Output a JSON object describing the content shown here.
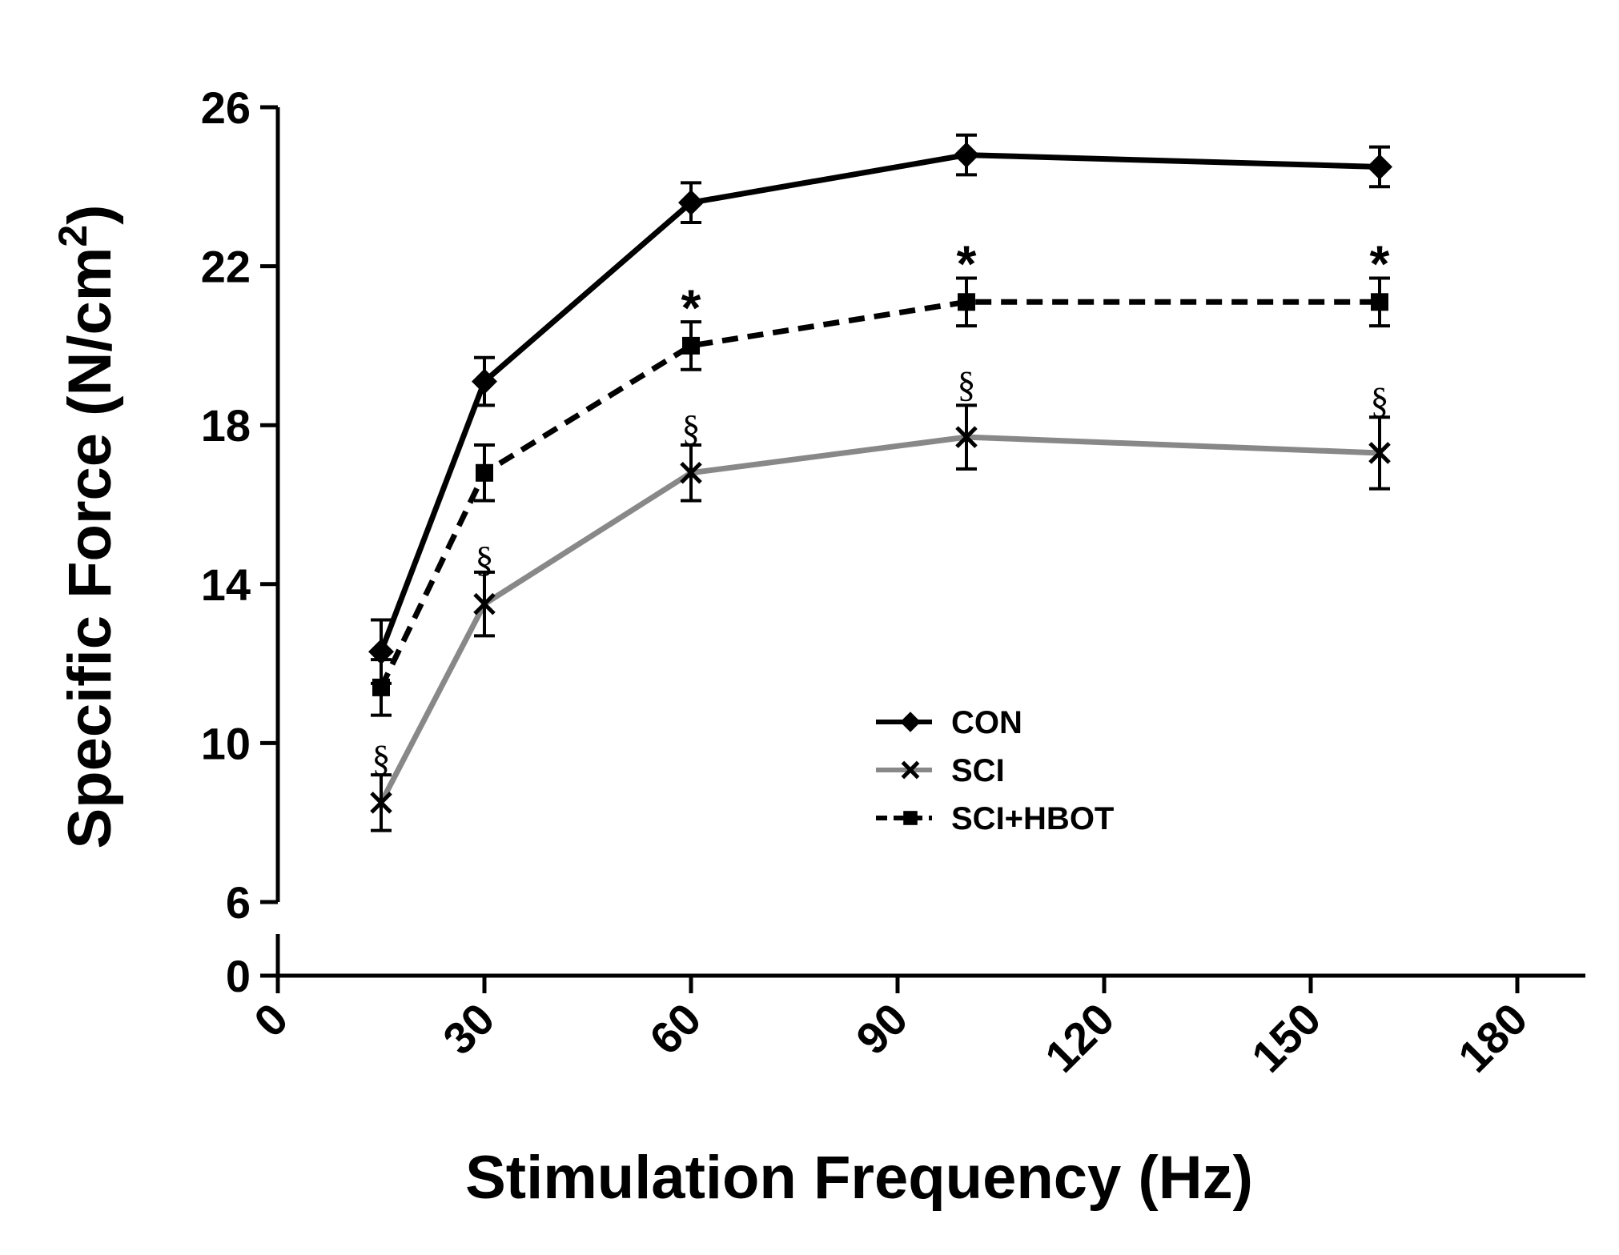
{
  "chart_data": {
    "type": "line",
    "title": "",
    "xlabel": "Stimulation Frequency (Hz)",
    "ylabel": "Specific Force (N/cm²)",
    "ylabel_main": "Specific Force (N/cm",
    "ylabel_sup": "2",
    "ylabel_close": ")",
    "xlim": [
      0,
      190
    ],
    "ylim": [
      0,
      26
    ],
    "y_axis_break": [
      0,
      6
    ],
    "xticks": [
      0,
      30,
      60,
      90,
      120,
      150,
      180
    ],
    "yticks": [
      0,
      6,
      10,
      14,
      18,
      22,
      26
    ],
    "x": [
      15,
      30,
      60,
      100,
      160
    ],
    "series": [
      {
        "name": "CON",
        "color": "#000000",
        "dash": "solid",
        "marker": "diamond",
        "values": [
          12.3,
          19.1,
          23.6,
          24.8,
          24.5
        ],
        "errors": [
          0.8,
          0.6,
          0.5,
          0.5,
          0.5
        ]
      },
      {
        "name": "SCI",
        "color": "#888888",
        "dash": "solid",
        "marker": "x",
        "values": [
          8.5,
          13.5,
          16.8,
          17.7,
          17.3
        ],
        "errors": [
          0.7,
          0.8,
          0.7,
          0.8,
          0.9
        ]
      },
      {
        "name": "SCI+HBOT",
        "color": "#000000",
        "dash": "dashed",
        "marker": "square",
        "values": [
          11.4,
          16.8,
          20.0,
          21.1,
          21.1
        ],
        "errors": [
          0.7,
          0.7,
          0.6,
          0.6,
          0.6
        ]
      }
    ],
    "annotations": [
      {
        "text": "*",
        "x": 60,
        "y": 21.2,
        "kind": "star"
      },
      {
        "text": "*",
        "x": 100,
        "y": 22.3,
        "kind": "star"
      },
      {
        "text": "*",
        "x": 160,
        "y": 22.3,
        "kind": "star"
      },
      {
        "text": "§",
        "x": 15,
        "y": 9.6,
        "kind": "section"
      },
      {
        "text": "§",
        "x": 30,
        "y": 14.6,
        "kind": "section"
      },
      {
        "text": "§",
        "x": 60,
        "y": 17.9,
        "kind": "section"
      },
      {
        "text": "§",
        "x": 100,
        "y": 19.0,
        "kind": "section"
      },
      {
        "text": "§",
        "x": 160,
        "y": 18.6,
        "kind": "section"
      }
    ],
    "legend": {
      "placement": "center-right",
      "entries": [
        "CON",
        "SCI",
        "SCI+HBOT"
      ]
    }
  }
}
